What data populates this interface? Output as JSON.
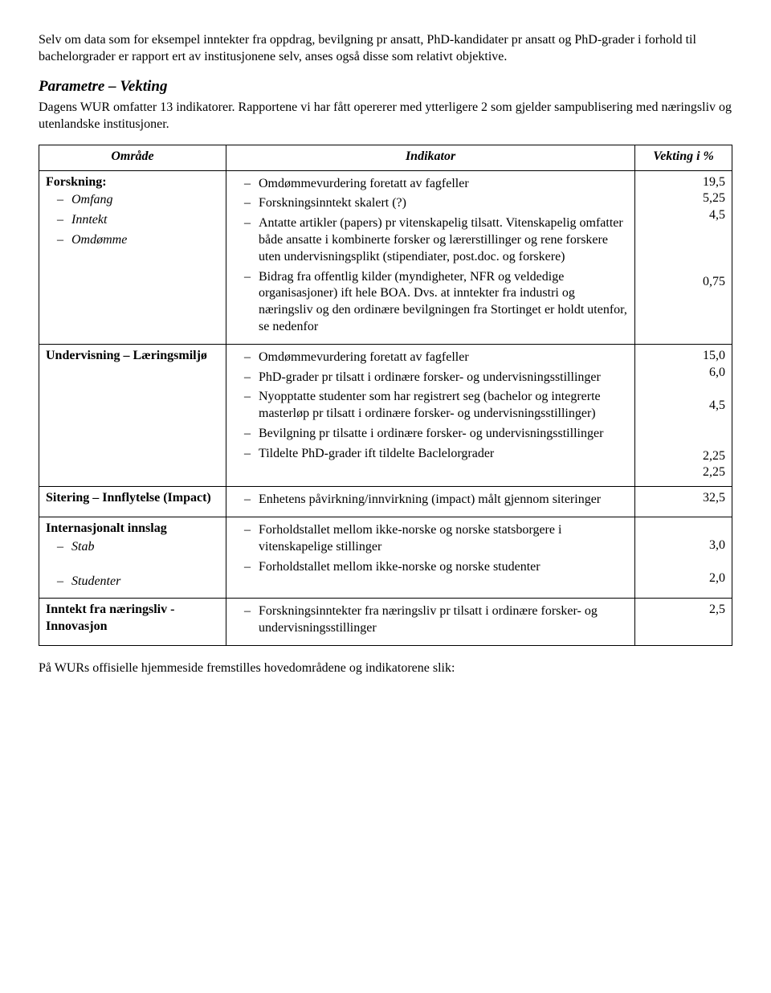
{
  "intro_para": "Selv om data som for eksempel inntekter fra oppdrag, bevilgning pr ansatt, PhD-kandidater pr ansatt og PhD-grader i forhold til bachelorgrader er rapport ert av institusjonene selv, anses også disse som relativt objektive.",
  "section_heading": "Parametre – Vekting",
  "section_para": "Dagens WUR omfatter 13 indikatorer. Rapportene vi har fått opererer med ytterligere 2 som gjelder sampublisering med næringsliv og utenlandske institusjoner.",
  "table": {
    "headers": {
      "area": "Område",
      "indicator": "Indikator",
      "weight": "Vekting i %"
    },
    "rows": [
      {
        "area_label": "Forskning:",
        "area_items": [
          "Omfang",
          "Inntekt",
          "Omdømme"
        ],
        "area_items_italic": true,
        "indicators": [
          "Omdømmevurdering foretatt av fagfeller",
          "Forskningsinntekt skalert (?)",
          "Antatte artikler (papers) pr vitenskapelig tilsatt. Vitenskapelig omfatter både ansatte i kombinerte forsker og lærerstillinger og rene forskere uten undervisningsplikt (stipendiater, post.doc. og forskere)",
          "Bidrag fra offentlig kilder (myndigheter, NFR og veldedige organisasjoner) ift hele BOA. Dvs. at inntekter fra industri og næringsliv og den ordinære bevilgningen fra Stortinget er holdt utenfor, se nedenfor"
        ],
        "weights": [
          "19,5",
          "5,25",
          "4,5",
          "",
          "",
          "",
          "0,75"
        ]
      },
      {
        "area_label": "Undervisning – Læringsmiljø",
        "area_items": [],
        "indicators": [
          "Omdømmevurdering foretatt av fagfeller",
          "PhD-grader pr tilsatt i ordinære forsker- og undervisningsstillinger",
          "Nyopptatte studenter som har registrert seg (bachelor og integrerte masterløp pr tilsatt i ordinære forsker- og undervisningsstillinger)",
          "Bevilgning pr tilsatte i ordinære forsker- og undervisningsstillinger",
          "Tildelte PhD-grader ift tildelte Baclelorgrader"
        ],
        "weights": [
          "15,0",
          "6,0",
          "",
          "4,5",
          "",
          "",
          "2,25",
          "2,25"
        ]
      },
      {
        "area_label": "Sitering – Innflytelse (Impact)",
        "area_items": [],
        "indicators": [
          "Enhetens påvirkning/innvirkning (impact) målt gjennom siteringer"
        ],
        "weights": [
          "32,5"
        ]
      },
      {
        "area_label": "Internasjonalt innslag",
        "area_items": [
          "Stab",
          "Studenter"
        ],
        "area_items_italic": true,
        "area_spaced": true,
        "indicators": [
          "Forholdstallet mellom ikke-norske og norske statsborgere i vitenskapelige stillinger",
          "Forholdstallet mellom ikke-norske og norske studenter"
        ],
        "weights": [
          "",
          "3,0",
          "",
          "2,0"
        ]
      },
      {
        "area_label": "Inntekt fra næringsliv - Innovasjon",
        "area_items": [],
        "indicators": [
          "Forskningsinntekter fra næringsliv pr tilsatt i ordinære forsker- og undervisningsstillinger"
        ],
        "weights": [
          "2,5"
        ]
      }
    ]
  },
  "footer_para": "På WURs offisielle hjemmeside fremstilles hovedområdene og indikatorene slik:"
}
